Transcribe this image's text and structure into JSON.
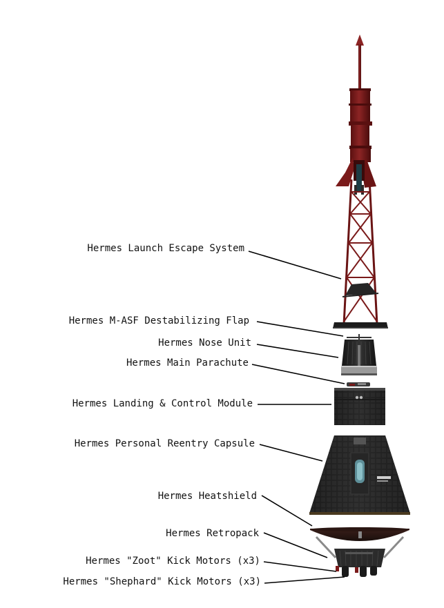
{
  "diagram": {
    "labels": [
      {
        "id": "les",
        "text": "Hermes Launch Escape System"
      },
      {
        "id": "flap",
        "text": "Hermes M-ASF Destabilizing Flap"
      },
      {
        "id": "nose",
        "text": "Hermes Nose Unit"
      },
      {
        "id": "chute",
        "text": "Hermes Main Parachute"
      },
      {
        "id": "lcm",
        "text": "Hermes Landing & Control Module"
      },
      {
        "id": "capsule",
        "text": "Hermes Personal Reentry Capsule"
      },
      {
        "id": "heatshield",
        "text": "Hermes Heatshield"
      },
      {
        "id": "retro",
        "text": "Hermes Retropack"
      },
      {
        "id": "zoot",
        "text": "Hermes \"Zoot\" Kick Motors (x3)"
      },
      {
        "id": "shephard",
        "text": "Hermes \"Shephard\" Kick Motors (x3)"
      }
    ],
    "colors": {
      "tower_red": "#7a1a1a",
      "tower_dark": "#4a0c0c",
      "hull_dark": "#1e1e1e",
      "hull_mid": "#2c2c2c",
      "hull_light": "#3c3c3c",
      "metal": "#9a9a9a",
      "window": "#6aa3ad"
    }
  }
}
